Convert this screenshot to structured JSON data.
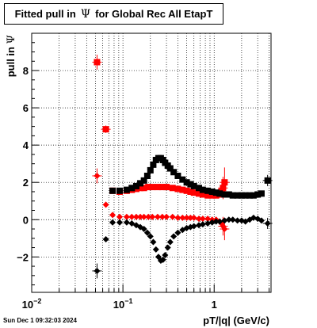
{
  "title": {
    "prefix": "Fitted pull in",
    "symbol": "Ψ",
    "suffix": "for Global Rec All EtapT"
  },
  "timestamp": "Sun Dec  1 09:32:03 2024",
  "chart_data": {
    "type": "scatter",
    "title": "Fitted pull in Ψ for Global Rec All EtapT",
    "xlabel": "pT/|q| (GeV/c)",
    "ylabel": "pull in Ψ",
    "xscale": "log",
    "xlim": [
      0.01,
      4.2
    ],
    "ylim": [
      -3.9,
      10.0
    ],
    "grid": true,
    "x_ticks": [
      {
        "value": 0.01,
        "base": "10",
        "exp": "−2"
      },
      {
        "value": 0.1,
        "base": "10",
        "exp": "−1"
      },
      {
        "value": 1,
        "base": "1",
        "exp": ""
      }
    ],
    "y_ticks": [
      {
        "value": -2,
        "label": "−2"
      },
      {
        "value": 0,
        "label": "0"
      },
      {
        "value": 2,
        "label": "2"
      },
      {
        "value": 4,
        "label": "4"
      },
      {
        "value": 6,
        "label": "6"
      },
      {
        "value": 8,
        "label": "8"
      }
    ],
    "series": [
      {
        "color": "#ff0000",
        "marker": "square",
        "points": [
          {
            "x": 0.052,
            "y": 8.45,
            "yerr": 0.4
          },
          {
            "x": 0.065,
            "y": 4.85,
            "yerr": 0.2
          },
          {
            "x": 0.077,
            "y": 1.55
          },
          {
            "x": 0.092,
            "y": 1.5
          },
          {
            "x": 0.11,
            "y": 1.55
          },
          {
            "x": 0.125,
            "y": 1.6
          },
          {
            "x": 0.14,
            "y": 1.65
          },
          {
            "x": 0.155,
            "y": 1.7
          },
          {
            "x": 0.17,
            "y": 1.7
          },
          {
            "x": 0.19,
            "y": 1.75
          },
          {
            "x": 0.21,
            "y": 1.75
          },
          {
            "x": 0.24,
            "y": 1.75
          },
          {
            "x": 0.27,
            "y": 1.75
          },
          {
            "x": 0.3,
            "y": 1.75
          },
          {
            "x": 0.35,
            "y": 1.7
          },
          {
            "x": 0.4,
            "y": 1.65
          },
          {
            "x": 0.45,
            "y": 1.6
          },
          {
            "x": 0.5,
            "y": 1.55
          },
          {
            "x": 0.55,
            "y": 1.5
          },
          {
            "x": 0.6,
            "y": 1.45
          },
          {
            "x": 0.68,
            "y": 1.4
          },
          {
            "x": 0.75,
            "y": 1.35
          },
          {
            "x": 0.85,
            "y": 1.3
          },
          {
            "x": 0.95,
            "y": 1.3
          },
          {
            "x": 1.05,
            "y": 1.3
          },
          {
            "x": 1.15,
            "y": 1.35
          },
          {
            "x": 1.2,
            "y": 1.5
          },
          {
            "x": 1.25,
            "y": 1.7,
            "yerr": 0.6
          },
          {
            "x": 1.3,
            "y": 2.0,
            "yerr": 0.8
          }
        ]
      },
      {
        "color": "#000000",
        "marker": "square",
        "points": [
          {
            "x": 0.077,
            "y": 1.55
          },
          {
            "x": 0.092,
            "y": 1.55
          },
          {
            "x": 0.11,
            "y": 1.6
          },
          {
            "x": 0.125,
            "y": 1.7
          },
          {
            "x": 0.14,
            "y": 1.8
          },
          {
            "x": 0.155,
            "y": 1.95
          },
          {
            "x": 0.17,
            "y": 2.1
          },
          {
            "x": 0.185,
            "y": 2.35
          },
          {
            "x": 0.2,
            "y": 2.65
          },
          {
            "x": 0.215,
            "y": 2.95
          },
          {
            "x": 0.23,
            "y": 3.2
          },
          {
            "x": 0.245,
            "y": 3.3
          },
          {
            "x": 0.26,
            "y": 3.3
          },
          {
            "x": 0.275,
            "y": 3.2
          },
          {
            "x": 0.29,
            "y": 3.05
          },
          {
            "x": 0.31,
            "y": 2.9
          },
          {
            "x": 0.33,
            "y": 2.75
          },
          {
            "x": 0.36,
            "y": 2.55
          },
          {
            "x": 0.4,
            "y": 2.35
          },
          {
            "x": 0.45,
            "y": 2.15
          },
          {
            "x": 0.5,
            "y": 2.0
          },
          {
            "x": 0.55,
            "y": 1.9
          },
          {
            "x": 0.6,
            "y": 1.8
          },
          {
            "x": 0.68,
            "y": 1.7
          },
          {
            "x": 0.75,
            "y": 1.6
          },
          {
            "x": 0.85,
            "y": 1.55
          },
          {
            "x": 0.95,
            "y": 1.5
          },
          {
            "x": 1.05,
            "y": 1.45
          },
          {
            "x": 1.15,
            "y": 1.4
          },
          {
            "x": 1.3,
            "y": 1.35
          },
          {
            "x": 1.45,
            "y": 1.35
          },
          {
            "x": 1.6,
            "y": 1.3
          },
          {
            "x": 1.8,
            "y": 1.3
          },
          {
            "x": 2.0,
            "y": 1.3
          },
          {
            "x": 2.2,
            "y": 1.3
          },
          {
            "x": 2.45,
            "y": 1.3
          },
          {
            "x": 2.7,
            "y": 1.3
          },
          {
            "x": 3.0,
            "y": 1.35
          },
          {
            "x": 3.3,
            "y": 1.4
          },
          {
            "x": 3.85,
            "y": 2.1,
            "yerr": 0.3
          }
        ]
      },
      {
        "color": "#ff0000",
        "marker": "diamond",
        "points": [
          {
            "x": 0.052,
            "y": 2.35,
            "yerr": 0.4
          },
          {
            "x": 0.065,
            "y": 0.8
          },
          {
            "x": 0.077,
            "y": 0.25
          },
          {
            "x": 0.092,
            "y": 0.15
          },
          {
            "x": 0.11,
            "y": 0.15
          },
          {
            "x": 0.125,
            "y": 0.15
          },
          {
            "x": 0.14,
            "y": 0.15
          },
          {
            "x": 0.155,
            "y": 0.15
          },
          {
            "x": 0.17,
            "y": 0.15
          },
          {
            "x": 0.19,
            "y": 0.15
          },
          {
            "x": 0.21,
            "y": 0.15
          },
          {
            "x": 0.24,
            "y": 0.15
          },
          {
            "x": 0.27,
            "y": 0.15
          },
          {
            "x": 0.3,
            "y": 0.15
          },
          {
            "x": 0.35,
            "y": 0.15
          },
          {
            "x": 0.4,
            "y": 0.1
          },
          {
            "x": 0.45,
            "y": 0.1
          },
          {
            "x": 0.5,
            "y": 0.1
          },
          {
            "x": 0.55,
            "y": 0.1
          },
          {
            "x": 0.6,
            "y": 0.1
          },
          {
            "x": 0.68,
            "y": 0.05
          },
          {
            "x": 0.75,
            "y": 0.05
          },
          {
            "x": 0.85,
            "y": 0.05
          },
          {
            "x": 0.95,
            "y": 0.0
          },
          {
            "x": 1.05,
            "y": 0.0
          },
          {
            "x": 1.15,
            "y": -0.1
          },
          {
            "x": 1.2,
            "y": -0.2
          },
          {
            "x": 1.25,
            "y": -0.35,
            "yerr": 0.5
          },
          {
            "x": 1.3,
            "y": -0.5,
            "yerr": 0.6
          }
        ]
      },
      {
        "color": "#000000",
        "marker": "diamond",
        "points": [
          {
            "x": 0.052,
            "y": -2.75,
            "yerr": 0.4
          },
          {
            "x": 0.065,
            "y": -1.05
          },
          {
            "x": 0.077,
            "y": -0.15
          },
          {
            "x": 0.092,
            "y": -0.15
          },
          {
            "x": 0.11,
            "y": -0.15
          },
          {
            "x": 0.125,
            "y": -0.2
          },
          {
            "x": 0.14,
            "y": -0.3
          },
          {
            "x": 0.155,
            "y": -0.4
          },
          {
            "x": 0.17,
            "y": -0.5
          },
          {
            "x": 0.185,
            "y": -0.7
          },
          {
            "x": 0.2,
            "y": -0.9
          },
          {
            "x": 0.215,
            "y": -1.2
          },
          {
            "x": 0.23,
            "y": -1.6
          },
          {
            "x": 0.245,
            "y": -2.0
          },
          {
            "x": 0.26,
            "y": -2.2
          },
          {
            "x": 0.275,
            "y": -2.15
          },
          {
            "x": 0.29,
            "y": -1.9
          },
          {
            "x": 0.31,
            "y": -1.5
          },
          {
            "x": 0.33,
            "y": -1.2
          },
          {
            "x": 0.36,
            "y": -0.9
          },
          {
            "x": 0.4,
            "y": -0.7
          },
          {
            "x": 0.45,
            "y": -0.55
          },
          {
            "x": 0.5,
            "y": -0.45
          },
          {
            "x": 0.55,
            "y": -0.4
          },
          {
            "x": 0.6,
            "y": -0.35
          },
          {
            "x": 0.68,
            "y": -0.3
          },
          {
            "x": 0.75,
            "y": -0.25
          },
          {
            "x": 0.85,
            "y": -0.2
          },
          {
            "x": 0.95,
            "y": -0.15
          },
          {
            "x": 1.05,
            "y": -0.1
          },
          {
            "x": 1.15,
            "y": -0.1
          },
          {
            "x": 1.3,
            "y": -0.05
          },
          {
            "x": 1.45,
            "y": 0.0
          },
          {
            "x": 1.6,
            "y": 0.0
          },
          {
            "x": 1.8,
            "y": -0.05
          },
          {
            "x": 2.0,
            "y": -0.05
          },
          {
            "x": 2.2,
            "y": -0.1
          },
          {
            "x": 2.45,
            "y": 0.0
          },
          {
            "x": 2.7,
            "y": 0.1
          },
          {
            "x": 3.0,
            "y": 0.05
          },
          {
            "x": 3.3,
            "y": -0.05
          },
          {
            "x": 3.85,
            "y": -0.2,
            "yerr": 0.3
          }
        ]
      }
    ]
  }
}
